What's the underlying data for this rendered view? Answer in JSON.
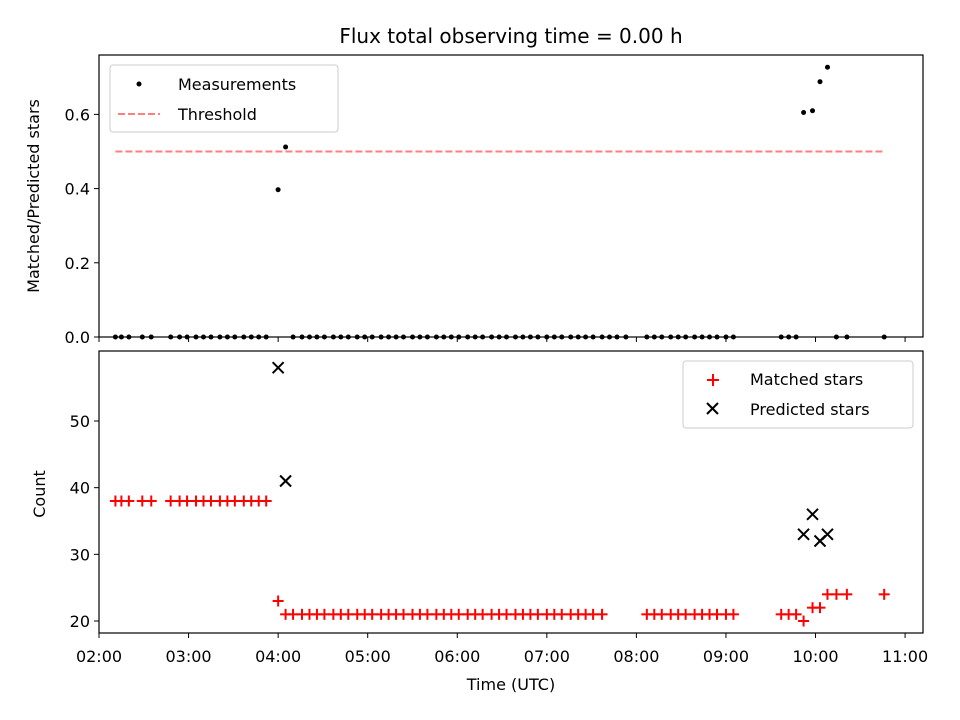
{
  "chart_data": [
    {
      "type": "scatter",
      "title": "Flux total observing time = 0.00 h",
      "xlabel": "",
      "ylabel": "Matched/Predicted stars",
      "xlim": [
        "02:00",
        "11:12"
      ],
      "ylim": [
        0,
        0.76
      ],
      "x_tick_labels": [
        "02:00",
        "03:00",
        "04:00",
        "05:00",
        "06:00",
        "07:00",
        "08:00",
        "09:00",
        "10:00",
        "11:00"
      ],
      "y_ticks": [
        0.0,
        0.2,
        0.4,
        0.6
      ],
      "y_tick_labels": [
        "0.0",
        "0.2",
        "0.4",
        "0.6"
      ],
      "legend_position": "upper-left",
      "series": [
        {
          "name": "Measurements",
          "color": "#000000",
          "marker": "dot",
          "points": [
            {
              "x": "02:11",
              "y": 0.0
            },
            {
              "x": "02:15",
              "y": 0.0
            },
            {
              "x": "02:20",
              "y": 0.0
            },
            {
              "x": "02:29",
              "y": 0.0
            },
            {
              "x": "02:35",
              "y": 0.0
            },
            {
              "x": "02:48",
              "y": 0.0
            },
            {
              "x": "02:54",
              "y": 0.0
            },
            {
              "x": "02:59",
              "y": 0.0
            },
            {
              "x": "03:05",
              "y": 0.0
            },
            {
              "x": "03:10",
              "y": 0.0
            },
            {
              "x": "03:15",
              "y": 0.0
            },
            {
              "x": "03:21",
              "y": 0.0
            },
            {
              "x": "03:26",
              "y": 0.0
            },
            {
              "x": "03:31",
              "y": 0.0
            },
            {
              "x": "03:37",
              "y": 0.0
            },
            {
              "x": "03:42",
              "y": 0.0
            },
            {
              "x": "03:47",
              "y": 0.0
            },
            {
              "x": "03:52",
              "y": 0.0
            },
            {
              "x": "04:00",
              "y": 0.397
            },
            {
              "x": "04:05",
              "y": 0.512
            },
            {
              "x": "04:10",
              "y": 0.0
            },
            {
              "x": "04:16",
              "y": 0.0
            },
            {
              "x": "04:21",
              "y": 0.0
            },
            {
              "x": "04:26",
              "y": 0.0
            },
            {
              "x": "04:31",
              "y": 0.0
            },
            {
              "x": "04:37",
              "y": 0.0
            },
            {
              "x": "04:42",
              "y": 0.0
            },
            {
              "x": "04:47",
              "y": 0.0
            },
            {
              "x": "04:53",
              "y": 0.0
            },
            {
              "x": "04:58",
              "y": 0.0
            },
            {
              "x": "05:03",
              "y": 0.0
            },
            {
              "x": "05:09",
              "y": 0.0
            },
            {
              "x": "05:14",
              "y": 0.0
            },
            {
              "x": "05:19",
              "y": 0.0
            },
            {
              "x": "05:24",
              "y": 0.0
            },
            {
              "x": "05:30",
              "y": 0.0
            },
            {
              "x": "05:35",
              "y": 0.0
            },
            {
              "x": "05:40",
              "y": 0.0
            },
            {
              "x": "05:46",
              "y": 0.0
            },
            {
              "x": "05:51",
              "y": 0.0
            },
            {
              "x": "05:56",
              "y": 0.0
            },
            {
              "x": "06:01",
              "y": 0.0
            },
            {
              "x": "06:07",
              "y": 0.0
            },
            {
              "x": "06:12",
              "y": 0.0
            },
            {
              "x": "06:17",
              "y": 0.0
            },
            {
              "x": "06:23",
              "y": 0.0
            },
            {
              "x": "06:28",
              "y": 0.0
            },
            {
              "x": "06:33",
              "y": 0.0
            },
            {
              "x": "06:39",
              "y": 0.0
            },
            {
              "x": "06:44",
              "y": 0.0
            },
            {
              "x": "06:49",
              "y": 0.0
            },
            {
              "x": "06:54",
              "y": 0.0
            },
            {
              "x": "07:00",
              "y": 0.0
            },
            {
              "x": "07:05",
              "y": 0.0
            },
            {
              "x": "07:10",
              "y": 0.0
            },
            {
              "x": "07:16",
              "y": 0.0
            },
            {
              "x": "07:21",
              "y": 0.0
            },
            {
              "x": "07:26",
              "y": 0.0
            },
            {
              "x": "07:31",
              "y": 0.0
            },
            {
              "x": "07:37",
              "y": 0.0
            },
            {
              "x": "07:42",
              "y": 0.0
            },
            {
              "x": "07:47",
              "y": 0.0
            },
            {
              "x": "07:53",
              "y": 0.0
            },
            {
              "x": "08:07",
              "y": 0.0
            },
            {
              "x": "08:12",
              "y": 0.0
            },
            {
              "x": "08:17",
              "y": 0.0
            },
            {
              "x": "08:23",
              "y": 0.0
            },
            {
              "x": "08:28",
              "y": 0.0
            },
            {
              "x": "08:33",
              "y": 0.0
            },
            {
              "x": "08:39",
              "y": 0.0
            },
            {
              "x": "08:44",
              "y": 0.0
            },
            {
              "x": "08:49",
              "y": 0.0
            },
            {
              "x": "08:54",
              "y": 0.0
            },
            {
              "x": "09:00",
              "y": 0.0
            },
            {
              "x": "09:05",
              "y": 0.0
            },
            {
              "x": "09:37",
              "y": 0.0
            },
            {
              "x": "09:42",
              "y": 0.0
            },
            {
              "x": "09:47",
              "y": 0.0
            },
            {
              "x": "09:52",
              "y": 0.605
            },
            {
              "x": "09:58",
              "y": 0.61
            },
            {
              "x": "10:03",
              "y": 0.688
            },
            {
              "x": "10:08",
              "y": 0.727
            },
            {
              "x": "10:14",
              "y": 0.0
            },
            {
              "x": "10:21",
              "y": 0.0
            },
            {
              "x": "10:46",
              "y": 0.0
            }
          ]
        },
        {
          "name": "Threshold",
          "color": "#ff7f7f",
          "line_style": "dashed",
          "points": [
            {
              "x": "02:11",
              "y": 0.5
            },
            {
              "x": "10:46",
              "y": 0.5
            }
          ]
        }
      ]
    },
    {
      "type": "scatter",
      "title": "",
      "xlabel": "Time (UTC)",
      "ylabel": "Count",
      "xlim": [
        "02:00",
        "11:12"
      ],
      "ylim": [
        18.2,
        60.5
      ],
      "x_tick_labels": [
        "02:00",
        "03:00",
        "04:00",
        "05:00",
        "06:00",
        "07:00",
        "08:00",
        "09:00",
        "10:00",
        "11:00"
      ],
      "y_ticks": [
        20,
        30,
        40,
        50
      ],
      "y_tick_labels": [
        "20",
        "30",
        "40",
        "50"
      ],
      "legend_position": "upper-right",
      "series": [
        {
          "name": "Matched stars",
          "color": "#ff0000",
          "marker": "plus",
          "points": [
            {
              "x": "02:11",
              "y": 38
            },
            {
              "x": "02:15",
              "y": 38
            },
            {
              "x": "02:20",
              "y": 38
            },
            {
              "x": "02:29",
              "y": 38
            },
            {
              "x": "02:35",
              "y": 38
            },
            {
              "x": "02:48",
              "y": 38
            },
            {
              "x": "02:54",
              "y": 38
            },
            {
              "x": "02:59",
              "y": 38
            },
            {
              "x": "03:05",
              "y": 38
            },
            {
              "x": "03:10",
              "y": 38
            },
            {
              "x": "03:15",
              "y": 38
            },
            {
              "x": "03:21",
              "y": 38
            },
            {
              "x": "03:26",
              "y": 38
            },
            {
              "x": "03:31",
              "y": 38
            },
            {
              "x": "03:37",
              "y": 38
            },
            {
              "x": "03:42",
              "y": 38
            },
            {
              "x": "03:47",
              "y": 38
            },
            {
              "x": "03:52",
              "y": 38
            },
            {
              "x": "04:00",
              "y": 23
            },
            {
              "x": "04:05",
              "y": 21
            },
            {
              "x": "04:10",
              "y": 21
            },
            {
              "x": "04:16",
              "y": 21
            },
            {
              "x": "04:21",
              "y": 21
            },
            {
              "x": "04:26",
              "y": 21
            },
            {
              "x": "04:31",
              "y": 21
            },
            {
              "x": "04:37",
              "y": 21
            },
            {
              "x": "04:42",
              "y": 21
            },
            {
              "x": "04:47",
              "y": 21
            },
            {
              "x": "04:53",
              "y": 21
            },
            {
              "x": "04:58",
              "y": 21
            },
            {
              "x": "05:03",
              "y": 21
            },
            {
              "x": "05:09",
              "y": 21
            },
            {
              "x": "05:14",
              "y": 21
            },
            {
              "x": "05:19",
              "y": 21
            },
            {
              "x": "05:24",
              "y": 21
            },
            {
              "x": "05:30",
              "y": 21
            },
            {
              "x": "05:35",
              "y": 21
            },
            {
              "x": "05:40",
              "y": 21
            },
            {
              "x": "05:46",
              "y": 21
            },
            {
              "x": "05:51",
              "y": 21
            },
            {
              "x": "05:56",
              "y": 21
            },
            {
              "x": "06:01",
              "y": 21
            },
            {
              "x": "06:07",
              "y": 21
            },
            {
              "x": "06:12",
              "y": 21
            },
            {
              "x": "06:17",
              "y": 21
            },
            {
              "x": "06:23",
              "y": 21
            },
            {
              "x": "06:28",
              "y": 21
            },
            {
              "x": "06:33",
              "y": 21
            },
            {
              "x": "06:39",
              "y": 21
            },
            {
              "x": "06:44",
              "y": 21
            },
            {
              "x": "06:49",
              "y": 21
            },
            {
              "x": "06:54",
              "y": 21
            },
            {
              "x": "07:00",
              "y": 21
            },
            {
              "x": "07:05",
              "y": 21
            },
            {
              "x": "07:10",
              "y": 21
            },
            {
              "x": "07:16",
              "y": 21
            },
            {
              "x": "07:21",
              "y": 21
            },
            {
              "x": "07:26",
              "y": 21
            },
            {
              "x": "07:31",
              "y": 21
            },
            {
              "x": "07:37",
              "y": 21
            },
            {
              "x": "08:07",
              "y": 21
            },
            {
              "x": "08:12",
              "y": 21
            },
            {
              "x": "08:17",
              "y": 21
            },
            {
              "x": "08:23",
              "y": 21
            },
            {
              "x": "08:28",
              "y": 21
            },
            {
              "x": "08:33",
              "y": 21
            },
            {
              "x": "08:39",
              "y": 21
            },
            {
              "x": "08:44",
              "y": 21
            },
            {
              "x": "08:49",
              "y": 21
            },
            {
              "x": "08:54",
              "y": 21
            },
            {
              "x": "09:00",
              "y": 21
            },
            {
              "x": "09:05",
              "y": 21
            },
            {
              "x": "09:37",
              "y": 21
            },
            {
              "x": "09:42",
              "y": 21
            },
            {
              "x": "09:47",
              "y": 21
            },
            {
              "x": "09:52",
              "y": 20
            },
            {
              "x": "09:58",
              "y": 22
            },
            {
              "x": "10:03",
              "y": 22
            },
            {
              "x": "10:08",
              "y": 24
            },
            {
              "x": "10:14",
              "y": 24
            },
            {
              "x": "10:21",
              "y": 24
            },
            {
              "x": "10:46",
              "y": 24
            }
          ]
        },
        {
          "name": "Predicted stars",
          "color": "#000000",
          "marker": "x",
          "points": [
            {
              "x": "04:00",
              "y": 58
            },
            {
              "x": "04:05",
              "y": 41
            },
            {
              "x": "09:52",
              "y": 33
            },
            {
              "x": "09:58",
              "y": 36
            },
            {
              "x": "10:03",
              "y": 32
            },
            {
              "x": "10:08",
              "y": 33
            }
          ]
        }
      ]
    }
  ]
}
